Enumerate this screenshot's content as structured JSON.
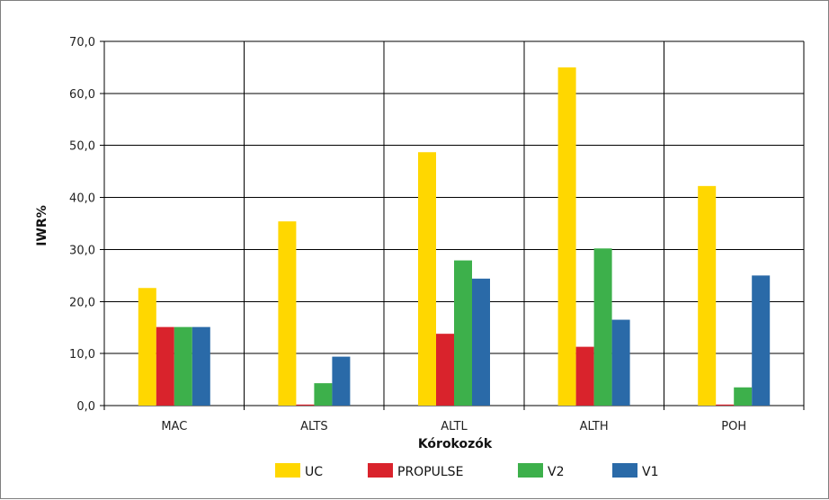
{
  "chart_data": {
    "type": "bar",
    "title": "",
    "xlabel": "Kórokozók",
    "ylabel": "IWR%",
    "ylim": [
      0,
      70
    ],
    "yticks": [
      "0,0",
      "10,0",
      "20,0",
      "30,0",
      "40,0",
      "50,0",
      "60,0",
      "70,0"
    ],
    "grid": true,
    "legend_position": "bottom",
    "categories": [
      "MAC",
      "ALTS",
      "ALTL",
      "ALTH",
      "POH"
    ],
    "series": [
      {
        "name": "UC",
        "color": "#ffd700",
        "values": [
          22.6,
          35.4,
          48.7,
          65.0,
          42.2
        ]
      },
      {
        "name": "PROPULSE",
        "color": "#d9232c",
        "values": [
          15.1,
          0.2,
          13.8,
          11.3,
          0.2
        ]
      },
      {
        "name": "V2",
        "color": "#3db04b",
        "values": [
          15.1,
          4.3,
          27.9,
          30.2,
          3.5
        ]
      },
      {
        "name": "V1",
        "color": "#2a6aa8",
        "values": [
          15.1,
          9.4,
          24.4,
          16.5,
          25.0
        ]
      }
    ]
  }
}
